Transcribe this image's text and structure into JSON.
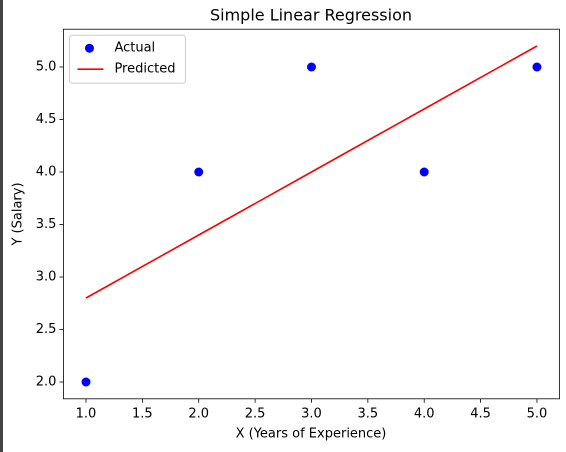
{
  "chart_data": {
    "type": "scatter_line",
    "title": "Simple Linear Regression",
    "xlabel": "X (Years of Experience)",
    "ylabel": "Y (Salary)",
    "x": [
      1,
      2,
      3,
      4,
      5
    ],
    "series": [
      {
        "name": "Actual",
        "color": "#0000ff",
        "kind": "scatter",
        "values": [
          2,
          4,
          5,
          4,
          5
        ]
      },
      {
        "name": "Predicted",
        "color": "#ff0000",
        "kind": "line",
        "values": [
          2.8,
          3.4,
          4.0,
          4.6,
          5.2
        ]
      }
    ],
    "xlim": [
      0.8,
      5.2
    ],
    "ylim": [
      1.84,
      5.36
    ],
    "xticks": [
      {
        "value": 1,
        "label": "1.0"
      },
      {
        "value": 1.5,
        "label": "1.5"
      },
      {
        "value": 2,
        "label": "2.0"
      },
      {
        "value": 2.5,
        "label": "2.5"
      },
      {
        "value": 3,
        "label": "3.0"
      },
      {
        "value": 3.5,
        "label": "3.5"
      },
      {
        "value": 4,
        "label": "4.0"
      },
      {
        "value": 4.5,
        "label": "4.5"
      },
      {
        "value": 5,
        "label": "5.0"
      }
    ],
    "yticks": [
      {
        "value": 2,
        "label": "2.0"
      },
      {
        "value": 2.5,
        "label": "2.5"
      },
      {
        "value": 3,
        "label": "3.0"
      },
      {
        "value": 3.5,
        "label": "3.5"
      },
      {
        "value": 4,
        "label": "4.0"
      },
      {
        "value": 4.5,
        "label": "4.5"
      },
      {
        "value": 5,
        "label": "5.0"
      }
    ],
    "legend": "upper left"
  }
}
